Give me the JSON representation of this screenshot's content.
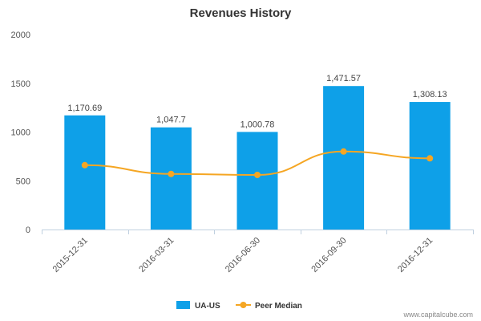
{
  "chart_data": {
    "type": "bar",
    "title": "Revenues History",
    "categories": [
      "2015-12-31",
      "2016-03-31",
      "2016-06-30",
      "2016-09-30",
      "2016-12-31"
    ],
    "series": [
      {
        "name": "UA-US",
        "type": "bar",
        "color": "#0ea0e8",
        "values": [
          1170.69,
          1047.7,
          1000.78,
          1471.57,
          1308.13
        ],
        "labels": [
          "1,170.69",
          "1,047.7",
          "1,000.78",
          "1,471.57",
          "1,308.13"
        ]
      },
      {
        "name": "Peer Median",
        "type": "line",
        "color": "#f5a623",
        "values": [
          660,
          570,
          560,
          800,
          730
        ]
      }
    ],
    "yticks": [
      "0",
      "500",
      "1000",
      "1500",
      "2000"
    ],
    "ytick_values": [
      0,
      500,
      1000,
      1500,
      2000
    ],
    "ylim": [
      0,
      2000
    ],
    "legend_position": "bottom-center"
  },
  "credit": "www.capitalcube.com"
}
